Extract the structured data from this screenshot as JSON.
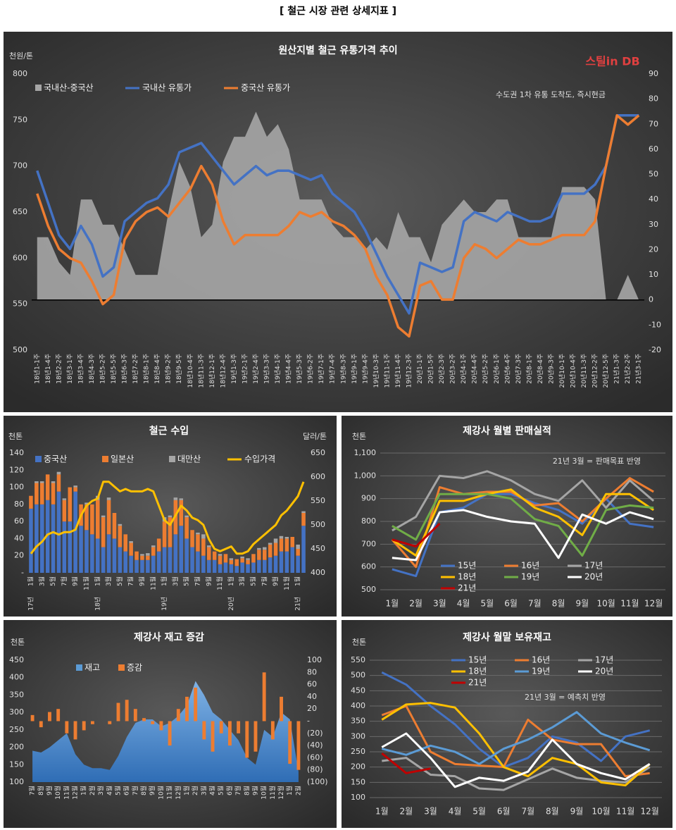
{
  "header": {
    "title": "[ 철근 시장 관련 상세지표 ]"
  },
  "chart_data": [
    {
      "type": "line",
      "title": "원산지별 철근 유통가격 추이",
      "y_unit": "천원/톤",
      "logo": "스틸in DB",
      "annotation": "수도권 1차 유통 도착도, 즉시현금",
      "grid": false,
      "categories": [
        "18년1-1주",
        "18년1-4주",
        "18년2-2주",
        "18년3-1주",
        "18년3-4주",
        "18년4-3주",
        "18년5-2주",
        "18년5-5주",
        "18년6-3주",
        "18년7-2주",
        "18년8-1주",
        "18년8-4주",
        "18년9-2주",
        "18년9-5주",
        "18년10-4주",
        "18년11-3주",
        "18년12-1주",
        "18년12-4주",
        "19년1-3주",
        "19년2-1주",
        "19년2-4주",
        "19년3-3주",
        "19년4-1주",
        "19년4-4주",
        "19년5-3주",
        "19년6-2주",
        "19년7-1주",
        "19년7-4주",
        "19년8-3주",
        "19년9-1주",
        "19년9-4주",
        "19년10-3주",
        "19년11-1주",
        "19년11-4주",
        "19년12-3주",
        "20년1-1주",
        "20년1-5주",
        "20년2-3주",
        "20년3-2주",
        "20년4-1주",
        "20년4-4주",
        "20년5-2주",
        "20년6-1주",
        "20년6-4주",
        "20년7-3주",
        "20년8-1주",
        "20년8-4주",
        "20년9-3주",
        "20년10-1주",
        "20년10-4주",
        "20년11-3주",
        "20년12-2주",
        "20년12-5주",
        "21년1-3주",
        "21년2-2주",
        "21년3-1주"
      ],
      "ylim": [
        500,
        800
      ],
      "yticks": [
        500,
        550,
        600,
        650,
        700,
        750,
        800
      ],
      "y2lim": [
        -20,
        90
      ],
      "y2ticks": [
        -20,
        -10,
        0,
        10,
        20,
        30,
        40,
        50,
        60,
        70,
        80,
        90
      ],
      "series": [
        {
          "name": "국내산-중국산",
          "color": "#a6a6a6",
          "type": "area",
          "axis": "y2",
          "values": [
            25,
            25,
            15,
            10,
            40,
            40,
            30,
            30,
            20,
            10,
            10,
            10,
            35,
            55,
            45,
            25,
            30,
            55,
            65,
            65,
            75,
            65,
            70,
            60,
            40,
            40,
            40,
            30,
            25,
            25,
            20,
            25,
            20,
            35,
            25,
            25,
            15,
            30,
            35,
            40,
            35,
            35,
            40,
            40,
            25,
            25,
            25,
            25,
            45,
            45,
            45,
            40,
            0,
            0,
            10,
            0
          ]
        },
        {
          "name": "국내산 유통가",
          "color": "#4472c4",
          "type": "line",
          "values": [
            695,
            660,
            625,
            610,
            635,
            615,
            580,
            590,
            640,
            650,
            660,
            665,
            680,
            715,
            720,
            725,
            710,
            695,
            680,
            690,
            700,
            690,
            695,
            695,
            690,
            685,
            690,
            670,
            660,
            650,
            630,
            605,
            580,
            560,
            540,
            595,
            590,
            585,
            590,
            640,
            650,
            645,
            640,
            650,
            645,
            640,
            640,
            645,
            670,
            670,
            670,
            680,
            700,
            755,
            755,
            755
          ]
        },
        {
          "name": "중국산 유통가",
          "color": "#ed7d31",
          "type": "line",
          "values": [
            670,
            635,
            610,
            600,
            595,
            575,
            550,
            560,
            620,
            640,
            650,
            655,
            645,
            660,
            675,
            700,
            680,
            640,
            615,
            625,
            625,
            625,
            625,
            635,
            650,
            645,
            650,
            640,
            635,
            625,
            610,
            580,
            560,
            525,
            515,
            570,
            575,
            555,
            555,
            600,
            615,
            610,
            600,
            610,
            620,
            615,
            615,
            620,
            625,
            625,
            625,
            640,
            700,
            755,
            745,
            755
          ]
        }
      ]
    },
    {
      "type": "bar",
      "stacked": true,
      "title": "철근 수입",
      "y_unit": "천톤",
      "y2_unit": "달러/톤",
      "grid": false,
      "categories": [
        "1월",
        null,
        "3월",
        null,
        "5월",
        null,
        "7월",
        null,
        "9월",
        null,
        "11월",
        null,
        "1월",
        null,
        "3월",
        null,
        "5월",
        null,
        "7월",
        null,
        "9월",
        null,
        "11월",
        null,
        "1월",
        null,
        "3월",
        null,
        "5월",
        null,
        "7월",
        null,
        "9월",
        null,
        "11월",
        null,
        "1월",
        null,
        "3월",
        null,
        "5월",
        null,
        "7월",
        null,
        "9월",
        null,
        "11월",
        null,
        "1월",
        null
      ],
      "x_groups": [
        "17년",
        "18년",
        "19년",
        "20년",
        "21년"
      ],
      "ylim": [
        0,
        140
      ],
      "yticks": [
        {
          "value": 0,
          "label": "-"
        },
        20,
        40,
        60,
        80,
        100,
        120,
        140
      ],
      "y2lim": [
        400,
        650
      ],
      "y2ticks": [
        400,
        450,
        500,
        550,
        600,
        650
      ],
      "series": [
        {
          "name": "중국산",
          "color": "#4472c4",
          "type": "bar",
          "values": [
            75,
            80,
            80,
            85,
            80,
            95,
            60,
            60,
            95,
            55,
            50,
            45,
            40,
            30,
            45,
            40,
            30,
            25,
            20,
            15,
            15,
            15,
            20,
            25,
            30,
            30,
            45,
            55,
            40,
            30,
            25,
            20,
            15,
            15,
            10,
            12,
            10,
            8,
            12,
            10,
            12,
            15,
            15,
            18,
            20,
            25,
            25,
            30,
            20,
            55
          ]
        },
        {
          "name": "일본산",
          "color": "#ed7d31",
          "type": "bar",
          "values": [
            15,
            25,
            25,
            30,
            25,
            20,
            25,
            40,
            5,
            25,
            30,
            35,
            45,
            35,
            40,
            30,
            25,
            20,
            15,
            10,
            5,
            5,
            10,
            15,
            30,
            35,
            40,
            30,
            25,
            20,
            20,
            20,
            15,
            10,
            10,
            10,
            5,
            8,
            5,
            5,
            10,
            12,
            12,
            15,
            15,
            15,
            15,
            12,
            8,
            15
          ]
        },
        {
          "name": "대만산",
          "color": "#a5a5a5",
          "type": "bar",
          "values": [
            0,
            2,
            2,
            0,
            2,
            3,
            2,
            0,
            2,
            0,
            2,
            0,
            5,
            2,
            3,
            0,
            2,
            0,
            2,
            0,
            2,
            3,
            2,
            0,
            5,
            2,
            3,
            2,
            2,
            0,
            2,
            5,
            2,
            0,
            2,
            0,
            2,
            0,
            2,
            2,
            0,
            2,
            3,
            2,
            5,
            3,
            2,
            0,
            5,
            2
          ]
        },
        {
          "name": "수입가격",
          "color": "#ffc000",
          "type": "line",
          "axis": "y2",
          "values": [
            440,
            455,
            465,
            480,
            485,
            480,
            485,
            485,
            490,
            520,
            540,
            550,
            555,
            590,
            590,
            580,
            570,
            575,
            570,
            570,
            570,
            575,
            570,
            540,
            510,
            500,
            520,
            540,
            530,
            515,
            510,
            500,
            470,
            450,
            445,
            450,
            455,
            440,
            440,
            445,
            460,
            470,
            480,
            490,
            500,
            520,
            530,
            545,
            560,
            590
          ]
        }
      ]
    },
    {
      "type": "line",
      "title": "제강사 월별 판매실적",
      "y_unit": "천톤",
      "annotation": "21년 3월 = 판매목표 반영",
      "grid": true,
      "categories": [
        "1월",
        "2월",
        "3월",
        "4월",
        "5월",
        "6월",
        "7월",
        "8월",
        "9월",
        "10월",
        "11월",
        "12월"
      ],
      "ylim": [
        500,
        1100
      ],
      "yticks": [
        500,
        600,
        700,
        800,
        900,
        {
          "value": 1000,
          "label": "1,000"
        },
        {
          "value": 1100,
          "label": "1,100"
        }
      ],
      "series": [
        {
          "name": "15년",
          "color": "#4472c4",
          "type": "line",
          "values": [
            590,
            560,
            840,
            860,
            920,
            920,
            880,
            850,
            790,
            900,
            790,
            775
          ]
        },
        {
          "name": "16년",
          "color": "#ed7d31",
          "type": "line",
          "values": [
            720,
            600,
            950,
            920,
            930,
            930,
            870,
            880,
            800,
            900,
            990,
            930
          ]
        },
        {
          "name": "17년",
          "color": "#a5a5a5",
          "type": "line",
          "values": [
            760,
            820,
            1000,
            990,
            1020,
            980,
            920,
            890,
            980,
            860,
            980,
            890
          ]
        },
        {
          "name": "18년",
          "color": "#ffc000",
          "type": "line",
          "values": [
            720,
            650,
            890,
            890,
            920,
            940,
            860,
            820,
            740,
            920,
            920,
            850
          ]
        },
        {
          "name": "19년",
          "color": "#70ad47",
          "type": "line",
          "values": [
            780,
            720,
            920,
            920,
            920,
            900,
            810,
            780,
            650,
            850,
            870,
            860
          ]
        },
        {
          "name": "20년",
          "color": "#ffffff",
          "type": "line",
          "values": [
            640,
            630,
            840,
            850,
            820,
            800,
            790,
            640,
            830,
            790,
            840,
            810
          ]
        },
        {
          "name": "21년",
          "color": "#c00000",
          "type": "line",
          "values": [
            720,
            690,
            790,
            null,
            null,
            null,
            null,
            null,
            null,
            null,
            null,
            null
          ]
        }
      ]
    },
    {
      "type": "area",
      "title": "제강사 재고 증감",
      "y_unit": "천톤",
      "grid": false,
      "categories": [
        "7월",
        "8월",
        "9월",
        "10월",
        "11월",
        "12월",
        "1월",
        "2월",
        "3월",
        "4월",
        "5월",
        "6월",
        "7월",
        "8월",
        "9월",
        "10월",
        "11월",
        "12월",
        "1월",
        "2월",
        "3월",
        "4월",
        "5월",
        "6월",
        "7월",
        "8월",
        "9월",
        "10월",
        "11월",
        "12월",
        "1월",
        "2월"
      ],
      "ylim": [
        100,
        450
      ],
      "yticks": [
        100,
        150,
        200,
        250,
        300,
        350,
        400,
        450
      ],
      "y2lim": [
        -100,
        100
      ],
      "y2ticks": [
        {
          "value": -100,
          "label": "(100)"
        },
        {
          "value": -80,
          "label": "(80)"
        },
        {
          "value": -60,
          "label": "(60)"
        },
        {
          "value": -40,
          "label": "(40)"
        },
        {
          "value": -20,
          "label": "(20)"
        },
        {
          "value": 0,
          "label": "-"
        },
        20,
        40,
        60,
        80,
        100
      ],
      "series": [
        {
          "name": "재고",
          "color": "#5b9bd5",
          "type": "area",
          "values": [
            190,
            185,
            200,
            220,
            240,
            180,
            150,
            140,
            140,
            135,
            175,
            230,
            270,
            280,
            280,
            260,
            270,
            290,
            320,
            390,
            350,
            300,
            280,
            250,
            220,
            170,
            150,
            250,
            230,
            300,
            280,
            130
          ]
        },
        {
          "name": "증감",
          "color": "#ed7d31",
          "type": "bar",
          "axis": "y2",
          "values": [
            10,
            -10,
            15,
            20,
            -20,
            -30,
            -15,
            -5,
            0,
            -5,
            30,
            35,
            20,
            5,
            -5,
            -15,
            -40,
            20,
            40,
            55,
            -30,
            -50,
            -20,
            -40,
            -20,
            -60,
            -50,
            80,
            -30,
            40,
            -70,
            -80
          ]
        }
      ]
    },
    {
      "type": "line",
      "title": "제강사 월말 보유재고",
      "y_unit": "천톤",
      "annotation": "21년 3월 = 예측치 반영",
      "grid": true,
      "categories": [
        "1월",
        "2월",
        "3월",
        "4월",
        "5월",
        "6월",
        "7월",
        "8월",
        "9월",
        "10월",
        "11월",
        "12월"
      ],
      "ylim": [
        100,
        550
      ],
      "yticks": [
        100,
        150,
        200,
        250,
        300,
        350,
        400,
        450,
        500,
        550
      ],
      "series": [
        {
          "name": "15년",
          "color": "#4472c4",
          "type": "line",
          "values": [
            510,
            470,
            400,
            340,
            260,
            200,
            230,
            300,
            280,
            220,
            300,
            320
          ]
        },
        {
          "name": "16년",
          "color": "#ed7d31",
          "type": "line",
          "values": [
            370,
            400,
            250,
            210,
            205,
            200,
            355,
            290,
            275,
            275,
            170,
            180
          ]
        },
        {
          "name": "17년",
          "color": "#a5a5a5",
          "type": "line",
          "values": [
            220,
            230,
            175,
            170,
            130,
            125,
            160,
            195,
            165,
            155,
            150,
            200
          ]
        },
        {
          "name": "18년",
          "color": "#ffc000",
          "type": "line",
          "values": [
            355,
            405,
            410,
            395,
            310,
            200,
            170,
            230,
            210,
            150,
            140,
            210
          ]
        },
        {
          "name": "19년",
          "color": "#5b9bd5",
          "type": "line",
          "values": [
            260,
            240,
            270,
            250,
            210,
            260,
            290,
            330,
            380,
            310,
            280,
            255
          ]
        },
        {
          "name": "20년",
          "color": "#ffffff",
          "type": "line",
          "values": [
            265,
            310,
            230,
            135,
            165,
            155,
            185,
            290,
            210,
            180,
            160,
            210
          ]
        },
        {
          "name": "21년",
          "color": "#c00000",
          "type": "line",
          "values": [
            245,
            180,
            195,
            null,
            null,
            null,
            null,
            null,
            null,
            null,
            null,
            null
          ]
        }
      ]
    }
  ]
}
